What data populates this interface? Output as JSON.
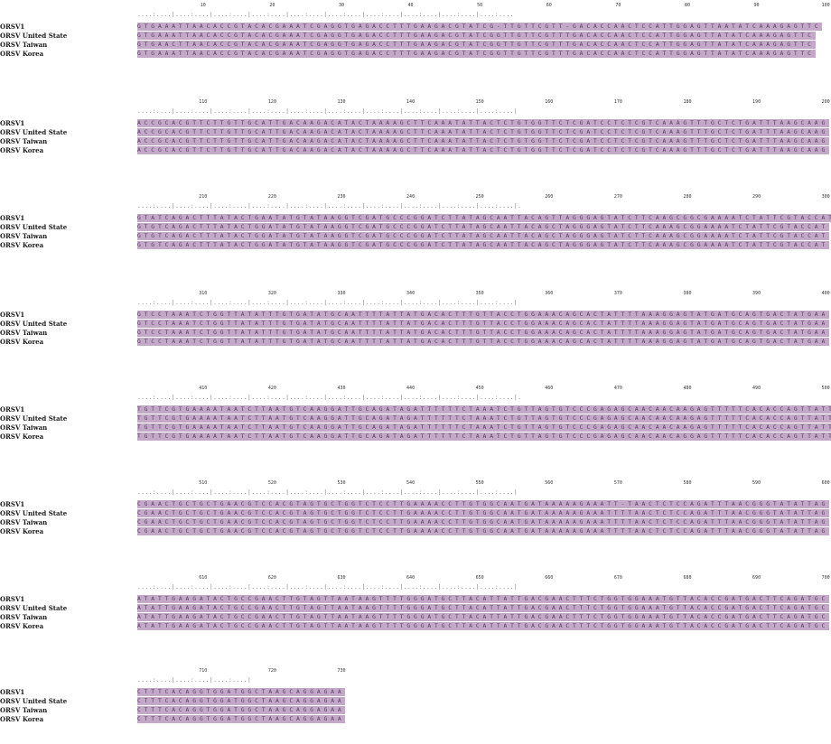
{
  "ruler_label_sets": [
    [
      "10",
      "20",
      "30",
      "40",
      "50",
      "60",
      "70",
      "80",
      "90",
      "100"
    ],
    [
      "110",
      "120",
      "130",
      "140",
      "150",
      "160",
      "170",
      "180",
      "190",
      "200"
    ],
    [
      "210",
      "220",
      "230",
      "240",
      "250",
      "260",
      "270",
      "280",
      "290",
      "300"
    ],
    [
      "310",
      "320",
      "330",
      "340",
      "350",
      "360",
      "370",
      "380",
      "390",
      "400"
    ],
    [
      "410",
      "420",
      "430",
      "440",
      "450",
      "460",
      "470",
      "480",
      "490",
      "500"
    ],
    [
      "510",
      "520",
      "530",
      "540",
      "550",
      "560",
      "570",
      "580",
      "590",
      "600"
    ],
    [
      "610",
      "620",
      "630",
      "640",
      "650",
      "660",
      "670",
      "680",
      "690",
      "700"
    ],
    [
      "710",
      "720",
      "730"
    ]
  ],
  "sequence_names": [
    "ORSV1",
    "ORSV United State",
    "ORSV Taiwan",
    "ORSV Korea"
  ],
  "blocks": [
    {
      "rows": [
        "GTGAAATTAACACCGTACACGAAATCGAGGTGAGACCTTTGAAGACGTATCG-TTGTTCGTT-GACACCAACTCCATTGGAGTTAATATCAAAGAGTTC",
        "GTGAAATTAACACCGTACACGAAATCGAGGTGAGACCTTTGAAGACGTATCGGTTGTTCGTTTGACACCAACTCCATTGGAGTTATATCAAAGAGTTC",
        "GTGAACTTAACACCGTACACGAAATCGAGGTGAGACCTTTGAAGACGTATCGGTTGTTCGTTTGACACCAACTCCATTGGAGTTATATCAAAGAGTTC",
        "GTGAAATTAACACCGTACACGAAATCGAGGTGAGACCTTTGAAGACGTATCGGTTGTTCGTTTGACACCAACTCCATTGGAGTTATATCAAAGAGTTC"
      ]
    },
    {
      "rows": [
        "ACCGCACGTTCTTGTTGCATTGACAAGACATACTAAAAGCTTCAAATATTACTCTGTGGTTCTCGATCCTCTCGTCAAAGTTTGCTCTGATTTAAGCAAG",
        "ACCGCACGTTCTTGTTGCATTGACAAGACATACTAAAAGCTTCAAATATTACTCTGTGGTTCTCGATCCTCTCGTCAAAGTTTGCTCTGATTTAAGCAAG",
        "ACCGCACGTTCTTGTTGCATTGACAAGACATACTAAAAGCTTCAAATATTACTCTGTGGTTCTCGATCCTCTCGTCAAAGTTTGCTCTGATTTAAGCAAG",
        "ACCGCACGTTCTTGTTGCATTGACAAGACATACTAAAAGCTTCAAATATTACTCTGTGGTTCTCGATCCTCTCGTCAAAGTTTGCTCTGATTTAAGCAAG"
      ]
    },
    {
      "rows": [
        "GTATCAGACTTTATACTGAATATGTATAAGGTCGATGCCCGGATCTTATAGCAATTACAGTTAGGGAGTATCTTCAAGCGGCGAAAATCTATTCGTACCAT",
        "GTGTCAGACTTTATACTGGATATGTATAAGGTCGATGCCCGGATCTTATAGCAATTACAGCTAGGGAGTATCTTCAAAGCGGAAAATCTATTCGTACCAT",
        "GTGTCAGACTTTATACTGGATATGTATAAGGTCGATGCCCGGATCTTATAGCAATTACAGCTAGGGAGTATCTTCAAAGCGGAAAATCTATTCGTACCAT",
        "GTGTCAGACTTTATACTGGATATGTATAAGGTCGATGCCCGGATCTTATAGCAATTACAGCTAGGGAGTATCTTCAAAGCGGAAAATCTATTCGTACCAT"
      ]
    },
    {
      "rows": [
        "GTCCTAAATCTGGTTATATTTGTGATATGCAATTTTATTATGACACTTTGTTACCTGGAAACAGCACTATTTTAAAGGAGTATGATGCAGTGACTATGAA",
        "GTCCTAAATCTGGTTATATTTGTGATATGCAATTTTATTATGACACTTTGTTACCTGGAAACAGCACTATTTTAAAGGAGTATGATGCAGTGACTATGAA",
        "GTCCTAAATCTGGTTATATTTGTGATATGCAATTTTATTATGACACTTTGTTACCTGGAAACAGCACTATTTTAAAGGAGTATGATGCAGTGACTATGAA",
        "GTCCTAAATCTGGTTATATTTGTGATATGCAATTTTATTATGACACTTTGTTACCTGGAAACAGCACTATTTTAAAGGAGTATGATGCAGTGACTATGAA"
      ]
    },
    {
      "rows": [
        "TGTTCGTGAAAATAATCTTAATGTCAAGGATTGCAGATAGATTTTTTCTAAATCTGTTAGTGTCCCGAGAGCAACAACAAGAGTTTTTCACACCAGTTATT",
        "TGTTCGTGAAAATAATCTTAATGTCAAGGATTGCAGATAGATTTTTTCTAAATCTGTTAGTGTCCCGAGAGCAACAACAAGAGTTTTTCACACCAGTTATT",
        "TGTTCGTGAAAATAATCTTAATGTCAAGGATTGCAGATAGATTTTTTCTAAATCTGTTAGTGTCCCGAGAGCAACAACAAGAGTTTTTCACACCAGTTATT",
        "TGTTCGTGAAAATAATCTTAATGTCAAGGATTGCAGATAGATTTTTTCTAAATCTGTTAGTGTCCCGAGAGCAACAACAGGAGTTTTTCACACCAGTTATT"
      ]
    },
    {
      "rows": [
        "CGAACTGCTGCTGAACGTCCACGTAGTGCTGGTCTCCTTGAAAACCTTGTGGCAATGATAAAAAGAAATT-TAACTCTCCAGATTTAACGGGTATATTAG",
        "CGAACTGCTGCTGAACGTCCACGTAGTGCTGGTCTCCTTGAAAACCTTGTGGCAATGATAAAAAGAAATTTTAACTCTCCAGATTTAACGGGTATATTAG",
        "CGAACTGCTGCTGAACGTCCACGTAGTGCTGGTCTCCTTGAAAACCTTGTGGCAATGATAAAAAGAAATTTTAACTCTCCAGATTTAACGGGTATATTAG",
        "CGAACTGCTGCTGAACGTCCACGTAGTGCTGGTCTCCTTGAAAACCTTGTGGCAATGATAAAAAGAAATTTTAACTCTCCAGATTTAACGGGTATATTAG"
      ]
    },
    {
      "rows": [
        "ATATTGAAGATACTGCCGAACTTGTAGTTAATAAGTTTTGGGATGCTTACATTATTGACGAACTTTCTGGTGGAAATGTTACACCGATGACTTCAGATGC",
        "ATATTGAAGATACTGCCGAACTTGTAGTTAATAAGTTTTGGGATGCTTACATTATTGACGAACTTTCTGGTGGAAATGTTACACCGATGACTTCAGATGC",
        "ATATTGAAGATACTGCCGAACTTGTAGTTAATAAGTTTTGGGATGCTTACATTATTGACGAACTTTCTGGTGGAAATGTTACACCGATGACTTCAGATGC",
        "ATATTGAAGATACTGCCGAACTTGTAGTTAATAAGTTTTGGGATGCTTACATTATTGACGAACTTTCTGGTGGAAATGTTACACCGATGACTTCAGATGC"
      ]
    },
    {
      "rows": [
        "CTTTCACAGGTGGATGGCTAAGCAGGAGAA",
        "CTTTCACAGGTGGATGGCTAAGCAGGAGAA",
        "CTTTCACAGGTGGATGGCTAAGCAGGAGAA",
        "CTTTCACAGGTGGATGGCTAAGCAGGAGAA"
      ]
    }
  ]
}
